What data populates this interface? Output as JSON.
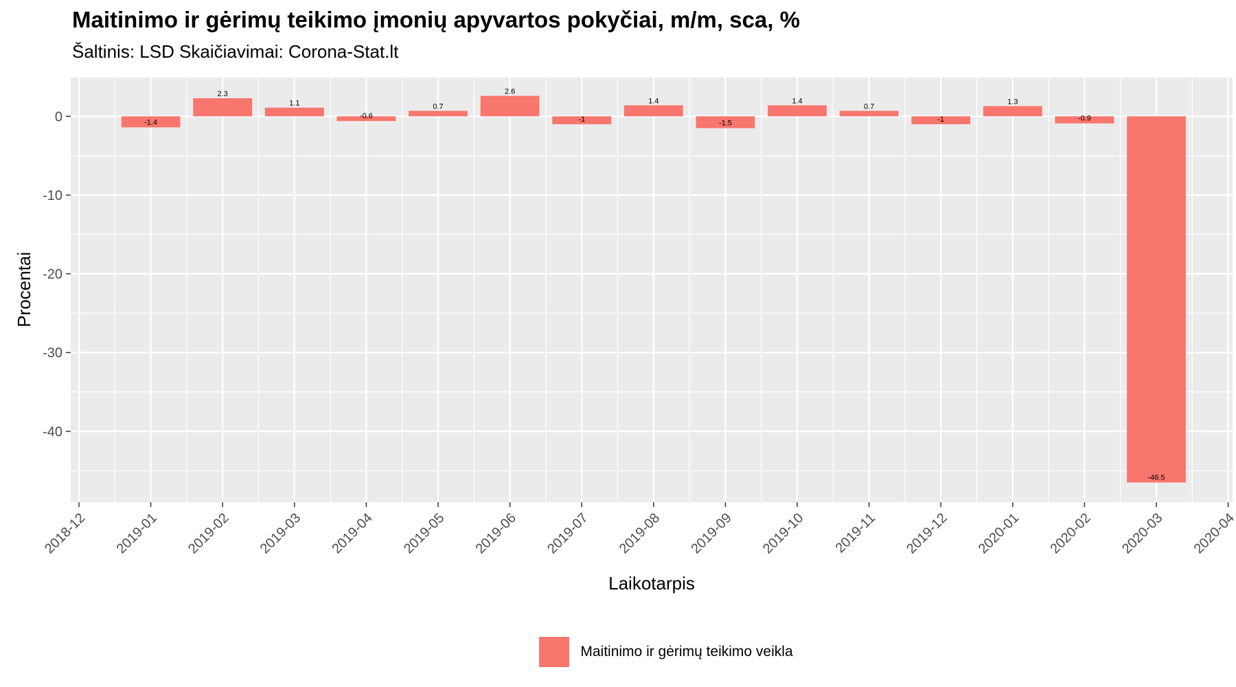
{
  "chart_data": {
    "type": "bar",
    "title": "Maitinimo ir gėrimų teikimo įmonių apyvartos pokyčiai, m/m, sca, %",
    "subtitle": "Šaltinis: LSD Skaičiavimai: Corona-Stat.lt",
    "xlabel": "Laikotarpis",
    "ylabel": "Procentai",
    "ylim": [
      -49,
      5
    ],
    "yticks": [
      0,
      -10,
      -20,
      -30,
      -40
    ],
    "xticks": [
      "2018-12",
      "2019-01",
      "2019-02",
      "2019-03",
      "2019-04",
      "2019-05",
      "2019-06",
      "2019-07",
      "2019-08",
      "2019-09",
      "2019-10",
      "2019-11",
      "2019-12",
      "2020-01",
      "2020-02",
      "2020-03",
      "2020-04"
    ],
    "categories": [
      "2019-01",
      "2019-02",
      "2019-03",
      "2019-04",
      "2019-05",
      "2019-06",
      "2019-07",
      "2019-08",
      "2019-09",
      "2019-10",
      "2019-11",
      "2019-12",
      "2020-01",
      "2020-02",
      "2020-03"
    ],
    "series": [
      {
        "name": "Maitinimo ir gėrimų teikimo veikla",
        "color": "#F8766D",
        "values": [
          -1.4,
          2.3,
          1.1,
          -0.6,
          0.7,
          2.6,
          -1,
          1.4,
          -1.5,
          1.4,
          0.7,
          -1,
          1.3,
          -0.9,
          -46.5
        ]
      }
    ],
    "grid": true,
    "legend_position": "bottom"
  }
}
